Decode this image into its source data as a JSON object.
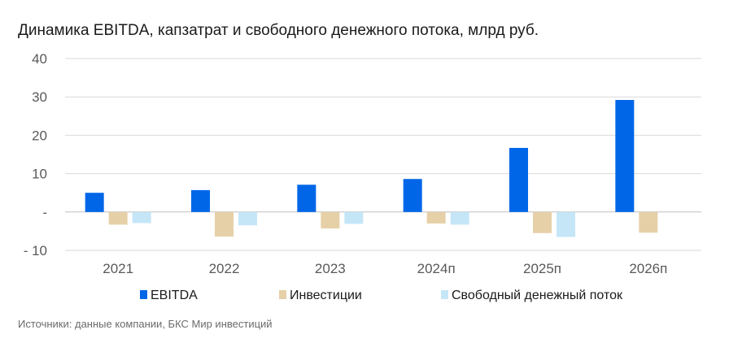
{
  "title": "Динамика EBITDA, капзатрат и свободного денежного потока, млрд руб.",
  "source": "Источники: данные компании, БКС Мир инвестиций",
  "chart_data": {
    "type": "bar",
    "categories": [
      "2021",
      "2022",
      "2023",
      "2024п",
      "2025п",
      "2026п"
    ],
    "series": [
      {
        "name": "EBITDA",
        "color": "#0066E8",
        "values": [
          5.0,
          5.7,
          7.1,
          8.6,
          16.7,
          29.2
        ]
      },
      {
        "name": "Инвестиции",
        "color": "#E6D0A8",
        "values": [
          -3.3,
          -6.4,
          -4.3,
          -3.0,
          -5.5,
          -5.4
        ]
      },
      {
        "name": "Свободный денежный поток",
        "color": "#C5E6F7",
        "values": [
          -2.9,
          -3.5,
          -3.1,
          -3.3,
          -6.5,
          null
        ]
      }
    ],
    "y_ticks": [
      {
        "value": 40,
        "label": "40"
      },
      {
        "value": 30,
        "label": "30"
      },
      {
        "value": 20,
        "label": "20"
      },
      {
        "value": 10,
        "label": "10"
      },
      {
        "value": 0,
        "label": "-"
      },
      {
        "value": -10,
        "label": "- 10"
      }
    ],
    "ylim": [
      -10,
      40
    ],
    "grid": true,
    "legend_position": "bottom"
  }
}
